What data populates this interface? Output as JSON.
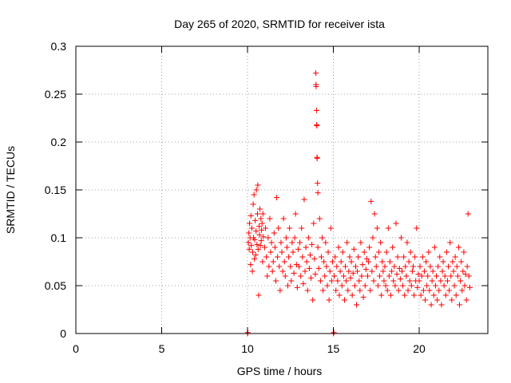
{
  "chart_data": {
    "type": "scatter",
    "title": "Day 265 of 2020, SRMTID for receiver ista",
    "xlabel": "GPS time / hours",
    "ylabel": "SRMTID / TECUs",
    "xlim": [
      0,
      24
    ],
    "ylim": [
      0,
      0.3
    ],
    "grid": true,
    "marker": "+",
    "colors": {
      "points": "#ff0000",
      "grid": "#a0a0a0",
      "axis": "#000000"
    },
    "x_ticks": [
      {
        "value": 0,
        "label": "0"
      },
      {
        "value": 5,
        "label": "5"
      },
      {
        "value": 10,
        "label": "10"
      },
      {
        "value": 15,
        "label": "15"
      },
      {
        "value": 20,
        "label": "20"
      }
    ],
    "y_ticks": [
      {
        "value": 0,
        "label": "0"
      },
      {
        "value": 0.05,
        "label": "0.05"
      },
      {
        "value": 0.1,
        "label": "0.1"
      },
      {
        "value": 0.15,
        "label": "0.15"
      },
      {
        "value": 0.2,
        "label": "0.2"
      },
      {
        "value": 0.25,
        "label": "0.25"
      },
      {
        "value": 0.3,
        "label": "0.3"
      }
    ],
    "series": [
      {
        "name": "SRMTID",
        "points": [
          [
            10.0,
            0.0
          ],
          [
            10.02,
            0.001
          ],
          [
            15.0,
            0.0
          ],
          [
            15.03,
            0.001
          ],
          [
            10.05,
            0.095
          ],
          [
            10.08,
            0.105
          ],
          [
            10.1,
            0.088
          ],
          [
            10.12,
            0.115
          ],
          [
            10.15,
            0.1
          ],
          [
            10.18,
            0.072
          ],
          [
            10.2,
            0.123
          ],
          [
            10.22,
            0.092
          ],
          [
            10.25,
            0.11
          ],
          [
            10.28,
            0.065
          ],
          [
            10.3,
            0.085
          ],
          [
            10.33,
            0.135
          ],
          [
            10.35,
            0.1
          ],
          [
            10.38,
            0.145
          ],
          [
            10.4,
            0.078
          ],
          [
            10.42,
            0.098
          ],
          [
            10.45,
            0.118
          ],
          [
            10.48,
            0.082
          ],
          [
            10.5,
            0.107
          ],
          [
            10.52,
            0.15
          ],
          [
            10.55,
            0.093
          ],
          [
            10.58,
            0.125
          ],
          [
            10.6,
            0.155
          ],
          [
            10.62,
            0.088
          ],
          [
            10.65,
            0.04
          ],
          [
            10.68,
            0.112
          ],
          [
            10.7,
            0.103
          ],
          [
            10.72,
            0.13
          ],
          [
            10.75,
            0.092
          ],
          [
            10.78,
            0.12
          ],
          [
            10.8,
            0.097
          ],
          [
            10.82,
            0.108
          ],
          [
            10.85,
            0.115
          ],
          [
            10.88,
            0.075
          ],
          [
            10.9,
            0.125
          ],
          [
            10.92,
            0.101
          ],
          [
            11.0,
            0.09
          ],
          [
            11.05,
            0.11
          ],
          [
            11.1,
            0.08
          ],
          [
            11.15,
            0.06
          ],
          [
            11.2,
            0.1
          ],
          [
            11.25,
            0.07
          ],
          [
            11.3,
            0.12
          ],
          [
            11.35,
            0.085
          ],
          [
            11.4,
            0.095
          ],
          [
            11.45,
            0.065
          ],
          [
            11.5,
            0.075
          ],
          [
            11.55,
            0.105
          ],
          [
            11.6,
            0.09
          ],
          [
            11.65,
            0.055
          ],
          [
            11.7,
            0.142
          ],
          [
            11.75,
            0.08
          ],
          [
            11.8,
            0.11
          ],
          [
            11.85,
            0.07
          ],
          [
            11.9,
            0.045
          ],
          [
            11.95,
            0.095
          ],
          [
            12.0,
            0.085
          ],
          [
            12.05,
            0.065
          ],
          [
            12.1,
            0.12
          ],
          [
            12.15,
            0.075
          ],
          [
            12.2,
            0.06
          ],
          [
            12.25,
            0.1
          ],
          [
            12.3,
            0.09
          ],
          [
            12.35,
            0.05
          ],
          [
            12.4,
            0.08
          ],
          [
            12.45,
            0.11
          ],
          [
            12.5,
            0.07
          ],
          [
            12.55,
            0.055
          ],
          [
            12.6,
            0.095
          ],
          [
            12.65,
            0.085
          ],
          [
            12.7,
            0.063
          ],
          [
            12.75,
            0.1
          ],
          [
            12.8,
            0.125
          ],
          [
            12.85,
            0.072
          ],
          [
            12.9,
            0.048
          ],
          [
            12.95,
            0.088
          ],
          [
            13.0,
            0.07
          ],
          [
            13.05,
            0.095
          ],
          [
            13.1,
            0.06
          ],
          [
            13.15,
            0.11
          ],
          [
            13.2,
            0.08
          ],
          [
            13.25,
            0.052
          ],
          [
            13.3,
            0.14
          ],
          [
            13.35,
            0.065
          ],
          [
            13.4,
            0.09
          ],
          [
            13.45,
            0.075
          ],
          [
            13.5,
            0.045
          ],
          [
            13.55,
            0.1
          ],
          [
            13.6,
            0.068
          ],
          [
            13.65,
            0.082
          ],
          [
            13.7,
            0.058
          ],
          [
            13.75,
            0.093
          ],
          [
            13.8,
            0.035
          ],
          [
            13.85,
            0.115
          ],
          [
            13.9,
            0.078
          ],
          [
            13.95,
            0.062
          ],
          [
            13.98,
            0.272
          ],
          [
            14.0,
            0.258
          ],
          [
            14.02,
            0.233
          ],
          [
            14.04,
            0.217
          ],
          [
            14.06,
            0.183
          ],
          [
            14.08,
            0.157
          ],
          [
            14.1,
            0.147
          ],
          [
            13.99,
            0.26
          ],
          [
            14.03,
            0.218
          ],
          [
            14.05,
            0.184
          ],
          [
            14.1,
            0.09
          ],
          [
            14.15,
            0.068
          ],
          [
            14.2,
            0.12
          ],
          [
            14.25,
            0.055
          ],
          [
            14.3,
            0.08
          ],
          [
            14.35,
            0.1
          ],
          [
            14.4,
            0.045
          ],
          [
            14.45,
            0.075
          ],
          [
            14.5,
            0.06
          ],
          [
            14.55,
            0.095
          ],
          [
            14.6,
            0.07
          ],
          [
            14.65,
            0.05
          ],
          [
            14.7,
            0.085
          ],
          [
            14.75,
            0.035
          ],
          [
            14.8,
            0.065
          ],
          [
            14.85,
            0.11
          ],
          [
            14.9,
            0.055
          ],
          [
            14.95,
            0.075
          ],
          [
            15.05,
            0.06
          ],
          [
            15.1,
            0.08
          ],
          [
            15.15,
            0.045
          ],
          [
            15.2,
            0.07
          ],
          [
            15.25,
            0.055
          ],
          [
            15.3,
            0.09
          ],
          [
            15.35,
            0.04
          ],
          [
            15.4,
            0.065
          ],
          [
            15.45,
            0.075
          ],
          [
            15.5,
            0.05
          ],
          [
            15.55,
            0.085
          ],
          [
            15.6,
            0.06
          ],
          [
            15.65,
            0.035
          ],
          [
            15.7,
            0.07
          ],
          [
            15.75,
            0.055
          ],
          [
            15.8,
            0.095
          ],
          [
            15.85,
            0.045
          ],
          [
            15.9,
            0.065
          ],
          [
            15.95,
            0.08
          ],
          [
            16.0,
            0.058
          ],
          [
            16.05,
            0.075
          ],
          [
            16.1,
            0.04
          ],
          [
            16.15,
            0.063
          ],
          [
            16.2,
            0.088
          ],
          [
            16.25,
            0.05
          ],
          [
            16.3,
            0.07
          ],
          [
            16.35,
            0.03
          ],
          [
            16.4,
            0.065
          ],
          [
            16.45,
            0.08
          ],
          [
            16.5,
            0.055
          ],
          [
            16.55,
            0.045
          ],
          [
            16.6,
            0.095
          ],
          [
            16.65,
            0.06
          ],
          [
            16.7,
            0.072
          ],
          [
            16.75,
            0.038
          ],
          [
            16.8,
            0.085
          ],
          [
            16.85,
            0.05
          ],
          [
            16.9,
            0.067
          ],
          [
            16.95,
            0.078
          ],
          [
            17.0,
            0.06
          ],
          [
            17.05,
            0.075
          ],
          [
            17.1,
            0.09
          ],
          [
            17.15,
            0.045
          ],
          [
            17.2,
            0.138
          ],
          [
            17.25,
            0.065
          ],
          [
            17.3,
            0.1
          ],
          [
            17.35,
            0.055
          ],
          [
            17.4,
            0.125
          ],
          [
            17.45,
            0.08
          ],
          [
            17.5,
            0.07
          ],
          [
            17.55,
            0.11
          ],
          [
            17.6,
            0.05
          ],
          [
            17.65,
            0.085
          ],
          [
            17.7,
            0.06
          ],
          [
            17.75,
            0.095
          ],
          [
            17.8,
            0.04
          ],
          [
            17.85,
            0.075
          ],
          [
            17.9,
            0.065
          ],
          [
            17.95,
            0.055
          ],
          [
            18.0,
            0.07
          ],
          [
            18.05,
            0.05
          ],
          [
            18.1,
            0.085
          ],
          [
            18.15,
            0.045
          ],
          [
            18.2,
            0.11
          ],
          [
            18.25,
            0.06
          ],
          [
            18.3,
            0.075
          ],
          [
            18.35,
            0.04
          ],
          [
            18.4,
            0.065
          ],
          [
            18.45,
            0.09
          ],
          [
            18.5,
            0.055
          ],
          [
            18.55,
            0.07
          ],
          [
            18.6,
            0.05
          ],
          [
            18.65,
            0.115
          ],
          [
            18.7,
            0.062
          ],
          [
            18.75,
            0.08
          ],
          [
            18.8,
            0.045
          ],
          [
            18.85,
            0.068
          ],
          [
            18.9,
            0.057
          ],
          [
            18.95,
            0.1
          ],
          [
            19.0,
            0.065
          ],
          [
            19.05,
            0.05
          ],
          [
            19.1,
            0.08
          ],
          [
            19.15,
            0.04
          ],
          [
            19.2,
            0.07
          ],
          [
            19.25,
            0.06
          ],
          [
            19.3,
            0.095
          ],
          [
            19.35,
            0.045
          ],
          [
            19.4,
            0.075
          ],
          [
            19.45,
            0.055
          ],
          [
            19.5,
            0.085
          ],
          [
            19.55,
            0.05
          ],
          [
            19.6,
            0.065
          ],
          [
            19.65,
            0.07
          ],
          [
            19.7,
            0.04
          ],
          [
            19.75,
            0.08
          ],
          [
            19.8,
            0.055
          ],
          [
            19.85,
            0.11
          ],
          [
            19.9,
            0.048
          ],
          [
            19.95,
            0.062
          ],
          [
            20.0,
            0.055
          ],
          [
            20.05,
            0.07
          ],
          [
            20.1,
            0.04
          ],
          [
            20.15,
            0.06
          ],
          [
            20.2,
            0.08
          ],
          [
            20.25,
            0.045
          ],
          [
            20.3,
            0.065
          ],
          [
            20.35,
            0.035
          ],
          [
            20.4,
            0.075
          ],
          [
            20.45,
            0.05
          ],
          [
            20.5,
            0.06
          ],
          [
            20.55,
            0.085
          ],
          [
            20.6,
            0.045
          ],
          [
            20.65,
            0.07
          ],
          [
            20.7,
            0.03
          ],
          [
            20.75,
            0.055
          ],
          [
            20.8,
            0.065
          ],
          [
            20.85,
            0.04
          ],
          [
            20.9,
            0.09
          ],
          [
            20.95,
            0.05
          ],
          [
            21.0,
            0.06
          ],
          [
            21.05,
            0.035
          ],
          [
            21.1,
            0.07
          ],
          [
            21.15,
            0.045
          ],
          [
            21.2,
            0.08
          ],
          [
            21.25,
            0.055
          ],
          [
            21.3,
            0.03
          ],
          [
            21.35,
            0.065
          ],
          [
            21.4,
            0.075
          ],
          [
            21.45,
            0.05
          ],
          [
            21.5,
            0.06
          ],
          [
            21.55,
            0.04
          ],
          [
            21.6,
            0.085
          ],
          [
            21.65,
            0.055
          ],
          [
            21.7,
            0.07
          ],
          [
            21.75,
            0.045
          ],
          [
            21.8,
            0.095
          ],
          [
            21.85,
            0.06
          ],
          [
            21.9,
            0.035
          ],
          [
            21.95,
            0.075
          ],
          [
            22.0,
            0.065
          ],
          [
            22.05,
            0.05
          ],
          [
            22.1,
            0.08
          ],
          [
            22.15,
            0.04
          ],
          [
            22.2,
            0.07
          ],
          [
            22.25,
            0.06
          ],
          [
            22.3,
            0.09
          ],
          [
            22.35,
            0.03
          ],
          [
            22.4,
            0.055
          ],
          [
            22.45,
            0.075
          ],
          [
            22.5,
            0.045
          ],
          [
            22.55,
            0.065
          ],
          [
            22.6,
            0.085
          ],
          [
            22.65,
            0.05
          ],
          [
            22.7,
            0.062
          ],
          [
            22.75,
            0.035
          ],
          [
            22.8,
            0.07
          ],
          [
            22.85,
            0.125
          ],
          [
            22.9,
            0.06
          ],
          [
            22.95,
            0.048
          ]
        ]
      }
    ]
  }
}
